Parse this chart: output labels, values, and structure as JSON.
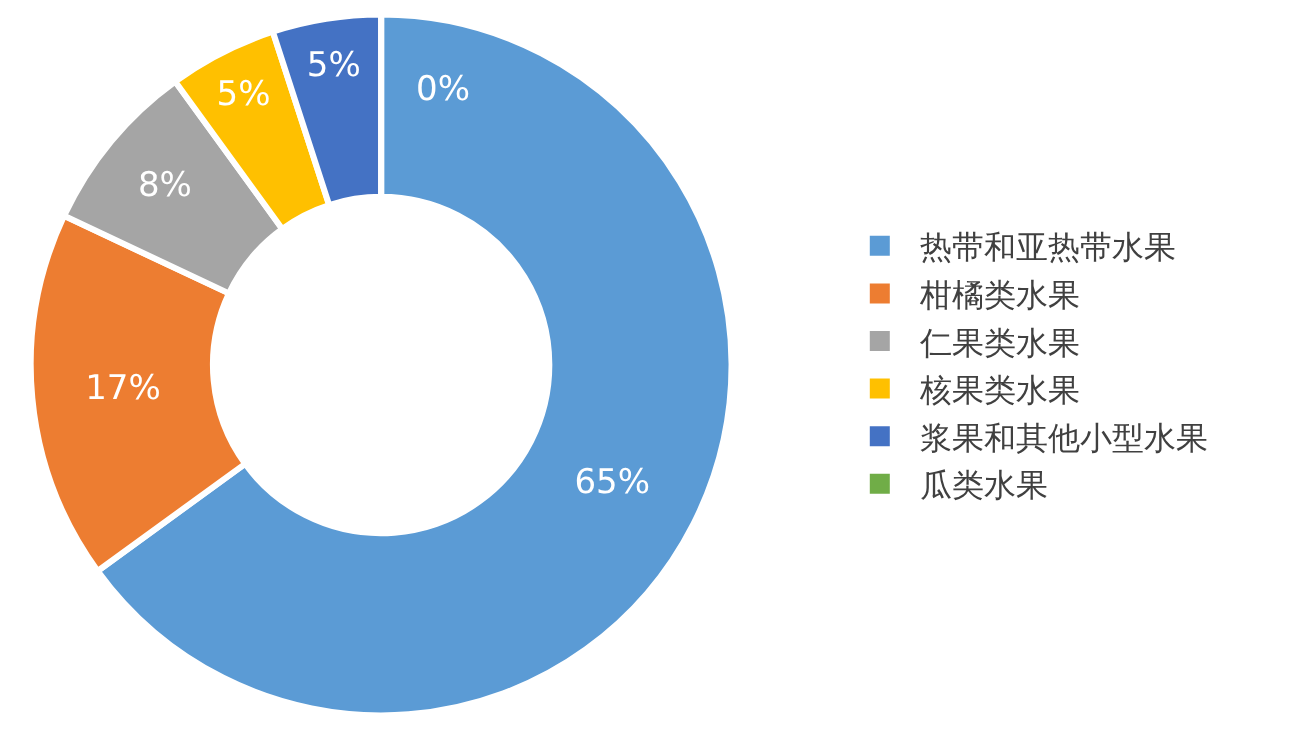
{
  "chart_data": {
    "type": "donut",
    "categories": [
      "热带和亚热带水果",
      "柑橘类水果",
      "仁果类水果",
      "核果类水果",
      "浆果和其他小型水果",
      "瓜类水果"
    ],
    "values": [
      65,
      17,
      8,
      5,
      5,
      0
    ],
    "colors": [
      "#5b9bd5",
      "#ed7d31",
      "#a5a5a5",
      "#ffc000",
      "#4472c4",
      "#70ad47"
    ],
    "value_labels": [
      "65%",
      "17%",
      "8%",
      "5%",
      "5%",
      "0%"
    ],
    "legend": "right"
  }
}
